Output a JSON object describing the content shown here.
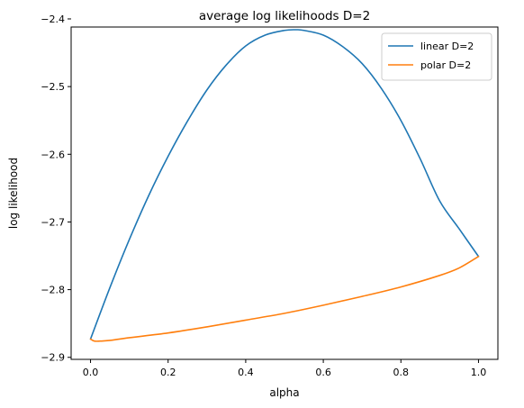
{
  "chart_data": {
    "type": "line",
    "title": "average log likelihoods D=2",
    "xlabel": "alpha",
    "ylabel": "log likelihood",
    "xlim": [
      -0.05,
      1.05
    ],
    "ylim": [
      -2.903,
      -2.412
    ],
    "xticks": [
      0.0,
      0.2,
      0.4,
      0.6,
      0.8,
      1.0
    ],
    "xtick_labels": [
      "0.0",
      "0.2",
      "0.4",
      "0.6",
      "0.8",
      "1.0"
    ],
    "yticks": [
      -2.9,
      -2.8,
      -2.7,
      -2.6,
      -2.5,
      -2.4
    ],
    "ytick_labels": [
      "−2.9",
      "−2.8",
      "−2.7",
      "−2.6",
      "−2.5",
      "−2.4"
    ],
    "grid": false,
    "legend_position": "top-right",
    "series": [
      {
        "name": "linear D=2",
        "color": "#1f77b4",
        "x": [
          0.0,
          0.05,
          0.1,
          0.15,
          0.2,
          0.25,
          0.3,
          0.35,
          0.4,
          0.45,
          0.5,
          0.53,
          0.55,
          0.6,
          0.65,
          0.7,
          0.75,
          0.8,
          0.85,
          0.9,
          0.95,
          1.0
        ],
        "y": [
          -2.873,
          -2.797,
          -2.726,
          -2.661,
          -2.603,
          -2.551,
          -2.505,
          -2.468,
          -2.44,
          -2.424,
          -2.417,
          -2.416,
          -2.417,
          -2.424,
          -2.441,
          -2.466,
          -2.503,
          -2.55,
          -2.607,
          -2.669,
          -2.71,
          -2.751
        ]
      },
      {
        "name": "polar D=2",
        "color": "#ff7f0e",
        "x": [
          0.0,
          0.01,
          0.025,
          0.05,
          0.1,
          0.2,
          0.3,
          0.4,
          0.5,
          0.6,
          0.7,
          0.8,
          0.9,
          0.95,
          1.0
        ],
        "y": [
          -2.873,
          -2.876,
          -2.876,
          -2.875,
          -2.871,
          -2.864,
          -2.855,
          -2.845,
          -2.835,
          -2.823,
          -2.81,
          -2.796,
          -2.779,
          -2.768,
          -2.751
        ]
      }
    ]
  }
}
